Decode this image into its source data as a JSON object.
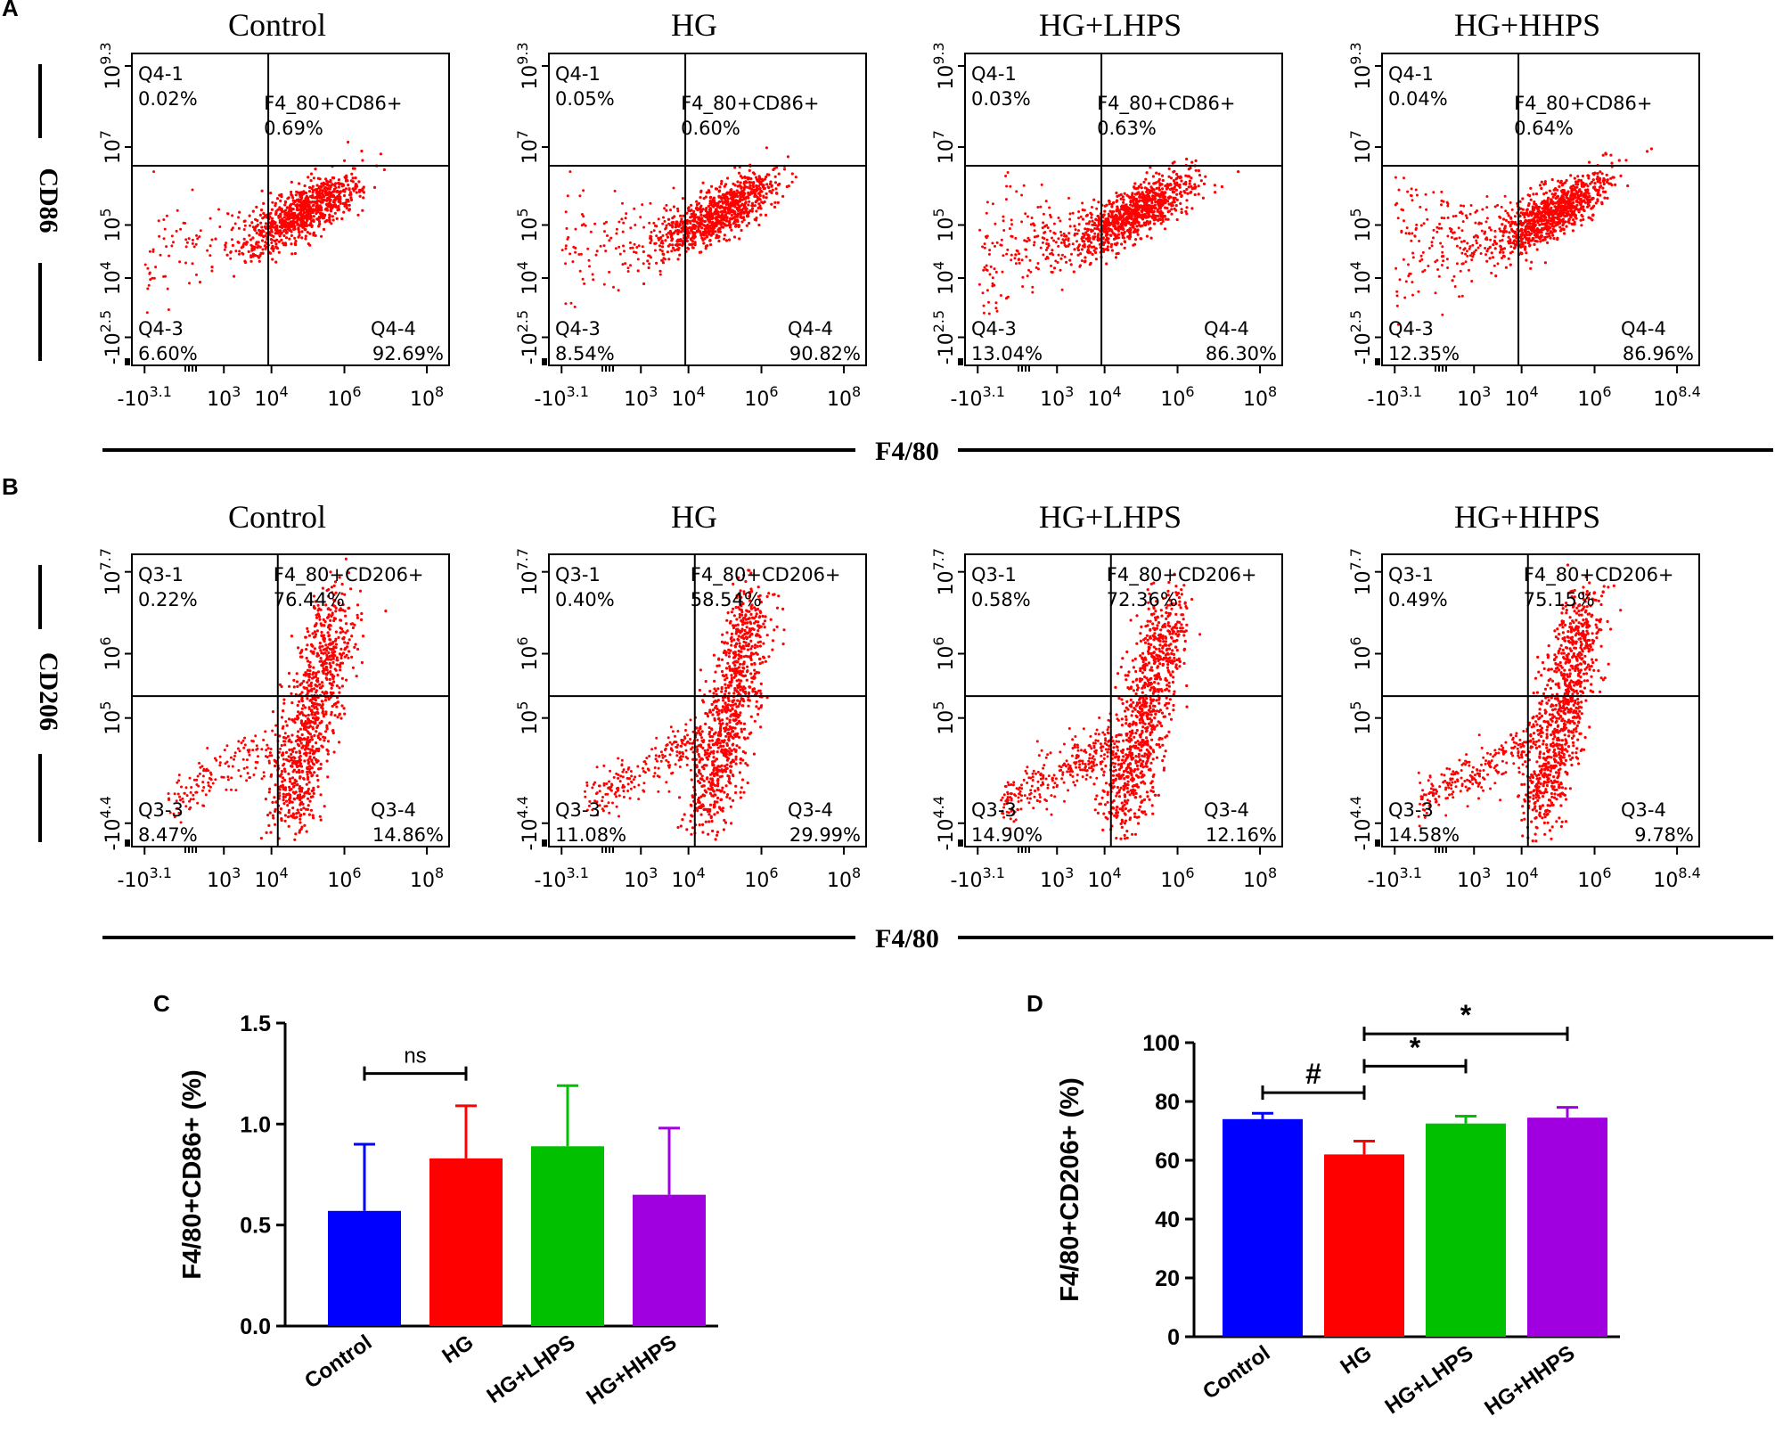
{
  "panel_labels": [
    "A",
    "B",
    "C",
    "D"
  ],
  "flow": {
    "x_axis_label": "F4/80",
    "x_ticks": [
      "-10",
      "3.1",
      "10",
      "3",
      "10",
      "4",
      "10",
      "6",
      "10",
      "8",
      "8.4"
    ],
    "rows": [
      {
        "panel": "A",
        "y_axis_label": "CD86",
        "y_tick_mantissa": "10",
        "y_ticks": [
          "9.3",
          "7",
          "5",
          "4",
          "2.5"
        ],
        "y_neg_prefix": "-",
        "quadrant_ids": [
          "Q4-1",
          "F4_80+CD86+",
          "Q4-3",
          "Q4-4"
        ],
        "groups": [
          {
            "name": "Control",
            "q1": "0.02%",
            "q2": "0.69%",
            "q3": "6.60%",
            "q4": "92.69%",
            "x_max_exp": "8"
          },
          {
            "name": "HG",
            "q1": "0.05%",
            "q2": "0.60%",
            "q3": "8.54%",
            "q4": "90.82%",
            "x_max_exp": "8"
          },
          {
            "name": "HG+LHPS",
            "q1": "0.03%",
            "q2": "0.63%",
            "q3": "13.04%",
            "q4": "86.30%",
            "x_max_exp": "8"
          },
          {
            "name": "HG+HHPS",
            "q1": "0.04%",
            "q2": "0.64%",
            "q3": "12.35%",
            "q4": "86.96%",
            "x_max_exp": "8.4"
          }
        ]
      },
      {
        "panel": "B",
        "y_axis_label": "CD206",
        "y_tick_mantissa": "10",
        "y_ticks": [
          "7.7",
          "6",
          "5",
          "4.4"
        ],
        "y_neg_prefix": "-",
        "quadrant_ids": [
          "Q3-1",
          "F4_80+CD206+",
          "Q3-3",
          "Q3-4"
        ],
        "groups": [
          {
            "name": "Control",
            "q1": "0.22%",
            "q2": "76.44%",
            "q3": "8.47%",
            "q4": "14.86%",
            "x_max_exp": "8"
          },
          {
            "name": "HG",
            "q1": "0.40%",
            "q2": "58.54%",
            "q3": "11.08%",
            "q4": "29.99%",
            "x_max_exp": "8"
          },
          {
            "name": "HG+LHPS",
            "q1": "0.58%",
            "q2": "72.36%",
            "q3": "14.90%",
            "q4": "12.16%",
            "x_max_exp": "8"
          },
          {
            "name": "HG+HHPS",
            "q1": "0.49%",
            "q2": "75.15%",
            "q3": "14.58%",
            "q4": "9.78%",
            "x_max_exp": "8.4"
          }
        ]
      }
    ]
  },
  "colors": {
    "control": "#0000ff",
    "hg": "#ff0000",
    "hg_lhps": "#00c000",
    "hg_hhps": "#a000e0",
    "dots": "#ff0000",
    "axis": "#000000"
  },
  "chart_data": [
    {
      "panel": "C",
      "type": "bar",
      "categories": [
        "Control",
        "HG",
        "HG+LHPS",
        "HG+HHPS"
      ],
      "values": [
        0.57,
        0.83,
        0.89,
        0.65
      ],
      "error_upper": [
        0.33,
        0.26,
        0.3,
        0.33
      ],
      "ylabel": "F4/80+CD86+ (%)",
      "ylim": [
        0,
        1.5
      ],
      "y_ticks": [
        "0.0",
        "0.5",
        "1.0",
        "1.5"
      ],
      "y_tick_values": [
        0,
        0.5,
        1.0,
        1.5
      ],
      "annotations": [
        {
          "from": 0,
          "to": 1,
          "text": "ns",
          "y": 1.25
        }
      ]
    },
    {
      "panel": "D",
      "type": "bar",
      "categories": [
        "Control",
        "HG",
        "HG+LHPS",
        "HG+HHPS"
      ],
      "values": [
        74,
        62,
        72.5,
        74.5
      ],
      "error_upper": [
        2,
        4.5,
        2.5,
        3.5
      ],
      "ylabel": "F4/80+CD206+ (%)",
      "ylim": [
        0,
        100
      ],
      "y_ticks": [
        "0",
        "20",
        "40",
        "60",
        "80",
        "100"
      ],
      "y_tick_values": [
        0,
        20,
        40,
        60,
        80,
        100
      ],
      "annotations": [
        {
          "from": 0,
          "to": 1,
          "text": "#",
          "y": 83
        },
        {
          "from": 1,
          "to": 2,
          "text": "*",
          "y": 92
        },
        {
          "from": 1,
          "to": 3,
          "text": "*",
          "y": 103
        }
      ]
    }
  ]
}
